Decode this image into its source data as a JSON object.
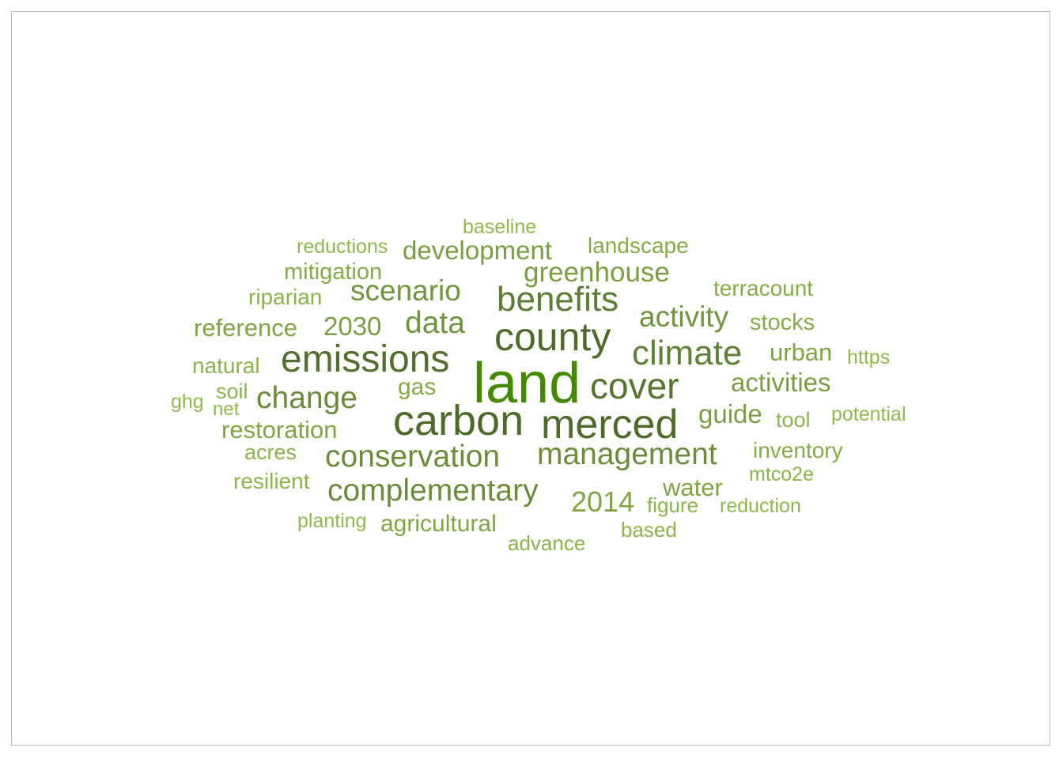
{
  "wordcloud": {
    "words": [
      {
        "text": "land",
        "color": "#448a00"
      },
      {
        "text": "carbon",
        "color": "#4f6b2a"
      },
      {
        "text": "merced",
        "color": "#4f6b2a"
      },
      {
        "text": "county",
        "color": "#4f6b2a"
      },
      {
        "text": "emissions",
        "color": "#51702c"
      },
      {
        "text": "benefits",
        "color": "#5c7e34"
      },
      {
        "text": "cover",
        "color": "#56752e"
      },
      {
        "text": "climate",
        "color": "#5f8336"
      },
      {
        "text": "conservation",
        "color": "#6b8d3a"
      },
      {
        "text": "management",
        "color": "#6b8d3a"
      },
      {
        "text": "complementary",
        "color": "#6b8d3a"
      },
      {
        "text": "change",
        "color": "#6b8d3a"
      },
      {
        "text": "scenario",
        "color": "#6e963c"
      },
      {
        "text": "data",
        "color": "#6e963c"
      },
      {
        "text": "activity",
        "color": "#6e963c"
      },
      {
        "text": "greenhouse",
        "color": "#7a9f40"
      },
      {
        "text": "development",
        "color": "#7a9f40"
      },
      {
        "text": "activities",
        "color": "#7a9f40"
      },
      {
        "text": "guide",
        "color": "#7a9f40"
      },
      {
        "text": "2030",
        "color": "#7a9f40"
      },
      {
        "text": "reference",
        "color": "#7fa640"
      },
      {
        "text": "2014",
        "color": "#7fa640"
      },
      {
        "text": "restoration",
        "color": "#7fa640"
      },
      {
        "text": "urban",
        "color": "#7fa640"
      },
      {
        "text": "water",
        "color": "#7fa640"
      },
      {
        "text": "agricultural",
        "color": "#7fa640"
      },
      {
        "text": "mitigation",
        "color": "#84ad44"
      },
      {
        "text": "stocks",
        "color": "#84ad44"
      },
      {
        "text": "inventory",
        "color": "#84ad44"
      },
      {
        "text": "terracount",
        "color": "#84ad44"
      },
      {
        "text": "landscape",
        "color": "#84ad44"
      },
      {
        "text": "gas",
        "color": "#84ad44"
      },
      {
        "text": "natural",
        "color": "#8ab548"
      },
      {
        "text": "riparian",
        "color": "#8ab548"
      },
      {
        "text": "resilient",
        "color": "#8ab548"
      },
      {
        "text": "acres",
        "color": "#8ab548"
      },
      {
        "text": "soil",
        "color": "#8ab548"
      },
      {
        "text": "advance",
        "color": "#8ab548"
      },
      {
        "text": "based",
        "color": "#8ab548"
      },
      {
        "text": "figure",
        "color": "#8ab548"
      },
      {
        "text": "mtco2e",
        "color": "#8ab548"
      },
      {
        "text": "tool",
        "color": "#8ab548"
      },
      {
        "text": "baseline",
        "color": "#8fba4a"
      },
      {
        "text": "reductions",
        "color": "#8fba4a"
      },
      {
        "text": "https",
        "color": "#8fba4a"
      },
      {
        "text": "potential",
        "color": "#8fba4a"
      },
      {
        "text": "reduction",
        "color": "#8fba4a"
      },
      {
        "text": "planting",
        "color": "#8fba4a"
      },
      {
        "text": "ghg",
        "color": "#8fba4a"
      },
      {
        "text": "net",
        "color": "#8fba4a"
      }
    ]
  }
}
